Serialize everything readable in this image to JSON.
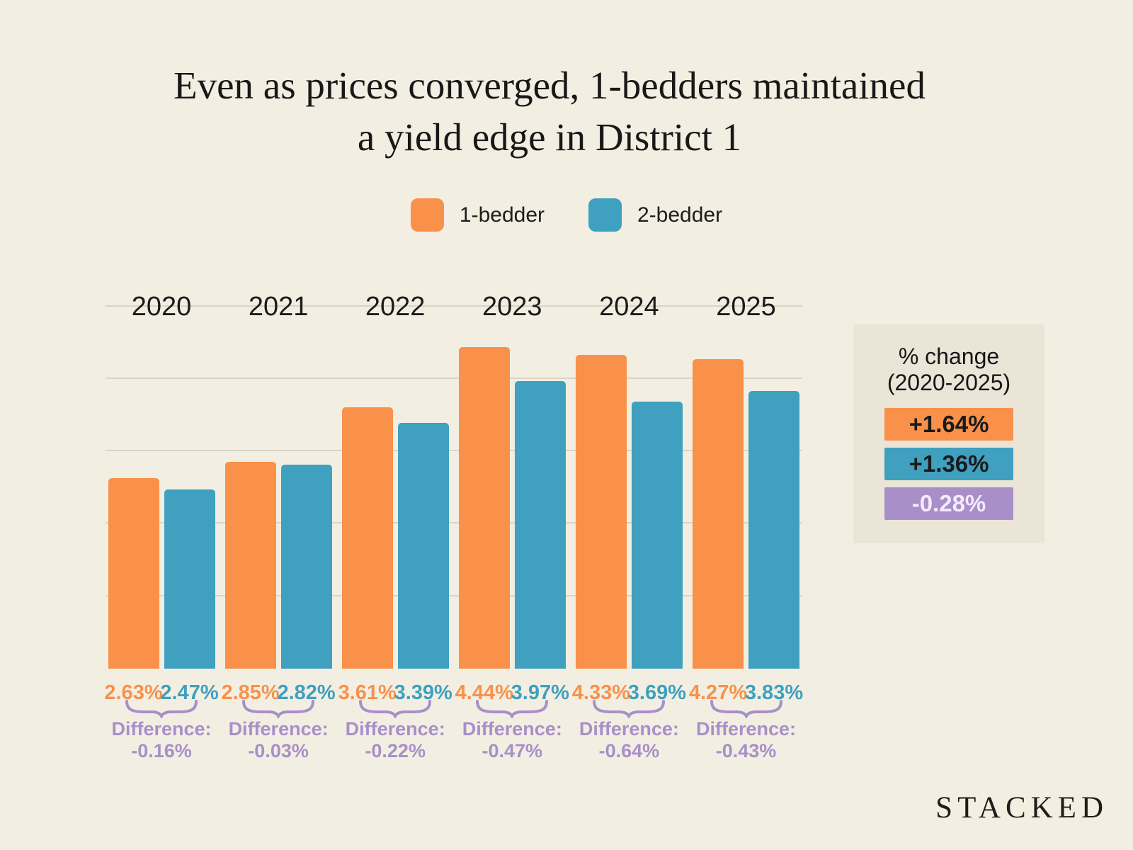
{
  "title": {
    "line1": "Even as prices converged, 1-bedders maintained",
    "line2": "a yield edge in District 1"
  },
  "legend": {
    "items": [
      {
        "label": "1-bedder",
        "color": "#f9914a"
      },
      {
        "label": "2-bedder",
        "color": "#3fa0bf"
      }
    ]
  },
  "chart_data": {
    "type": "bar",
    "title": "Even as prices converged, 1-bedders maintained a yield edge in District 1",
    "categories": [
      "2020",
      "2021",
      "2022",
      "2023",
      "2024",
      "2025"
    ],
    "series": [
      {
        "name": "1-bedder",
        "color": "#f9914a",
        "values": [
          2.63,
          2.85,
          3.61,
          4.44,
          4.33,
          4.27
        ],
        "labels": [
          "2.63%",
          "2.85%",
          "3.61%",
          "4.44%",
          "4.33%",
          "4.27%"
        ]
      },
      {
        "name": "2-bedder",
        "color": "#3fa0bf",
        "values": [
          2.47,
          2.82,
          3.39,
          3.97,
          3.69,
          3.83
        ],
        "labels": [
          "2.47%",
          "2.82%",
          "3.39%",
          "3.97%",
          "3.69%",
          "3.83%"
        ]
      }
    ],
    "differences": {
      "label": "Difference:",
      "values": [
        "-0.16%",
        "-0.03%",
        "-0.22%",
        "-0.47%",
        "-0.64%",
        "-0.43%"
      ],
      "color": "#a98fc9"
    },
    "units": "%",
    "xlabel": "",
    "ylabel": "",
    "ylim": [
      0,
      5
    ],
    "gridline_values": [
      1,
      2,
      3,
      4,
      5
    ],
    "grid": true,
    "legend_position": "top"
  },
  "panel": {
    "title_line1": "% change",
    "title_line2": "(2020-2025)",
    "chips": [
      {
        "value": "+1.64%",
        "bg": "#f9914a",
        "fg": "#1a1a1a"
      },
      {
        "value": "+1.36%",
        "bg": "#3fa0bf",
        "fg": "#1a1a1a"
      },
      {
        "value": "-0.28%",
        "bg": "#a98fc9",
        "fg": "#f3eafd"
      }
    ]
  },
  "brand": {
    "logo_text": "STACKED"
  },
  "colors": {
    "background": "#f2efe2",
    "panel_background": "#eae5d6",
    "gridline": "#d9d4c5",
    "text": "#1a1a1a",
    "orange": "#f9914a",
    "teal": "#3fa0bf",
    "purple": "#a98fc9"
  }
}
